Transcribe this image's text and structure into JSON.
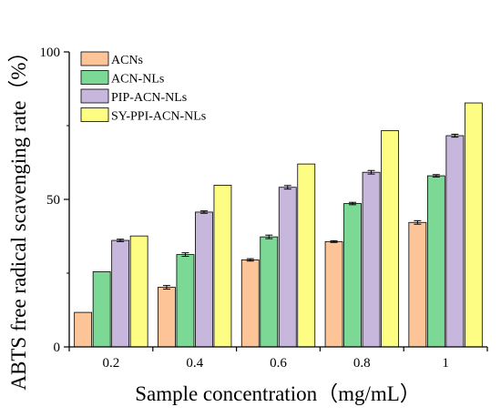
{
  "chart_data": {
    "type": "bar",
    "xlabel": "Sample concentration（mg/mL）",
    "ylabel": "ABTS free radical scavenging rate（%）",
    "categories": [
      "0.2",
      "0.4",
      "0.6",
      "0.8",
      "1"
    ],
    "ylim": [
      0,
      100
    ],
    "yticks": [
      "0",
      "50",
      "100"
    ],
    "legend_position": "top-left",
    "grid": false,
    "series": [
      {
        "name": "ACNs",
        "color": "#FDC497",
        "values": [
          11.7,
          20.2,
          29.5,
          35.7,
          42.2
        ],
        "errors": [
          0,
          0.6,
          0.4,
          0.3,
          0.6
        ]
      },
      {
        "name": "ACN-NLs",
        "color": "#7CD895",
        "values": [
          25.5,
          31.3,
          37.3,
          48.6,
          58.0
        ],
        "errors": [
          0,
          0.6,
          0.6,
          0.4,
          0.4
        ]
      },
      {
        "name": "PIP-ACN-NLs",
        "color": "#C8B7DC",
        "values": [
          36.1,
          45.7,
          54.1,
          59.2,
          71.6
        ],
        "errors": [
          0.4,
          0.4,
          0.6,
          0.6,
          0.5
        ]
      },
      {
        "name": "SY-PPI-ACN-NLs",
        "color": "#FDFD84",
        "values": [
          37.6,
          54.8,
          62.0,
          73.3,
          82.7
        ],
        "errors": [
          0,
          0,
          0,
          0,
          0
        ]
      }
    ]
  }
}
